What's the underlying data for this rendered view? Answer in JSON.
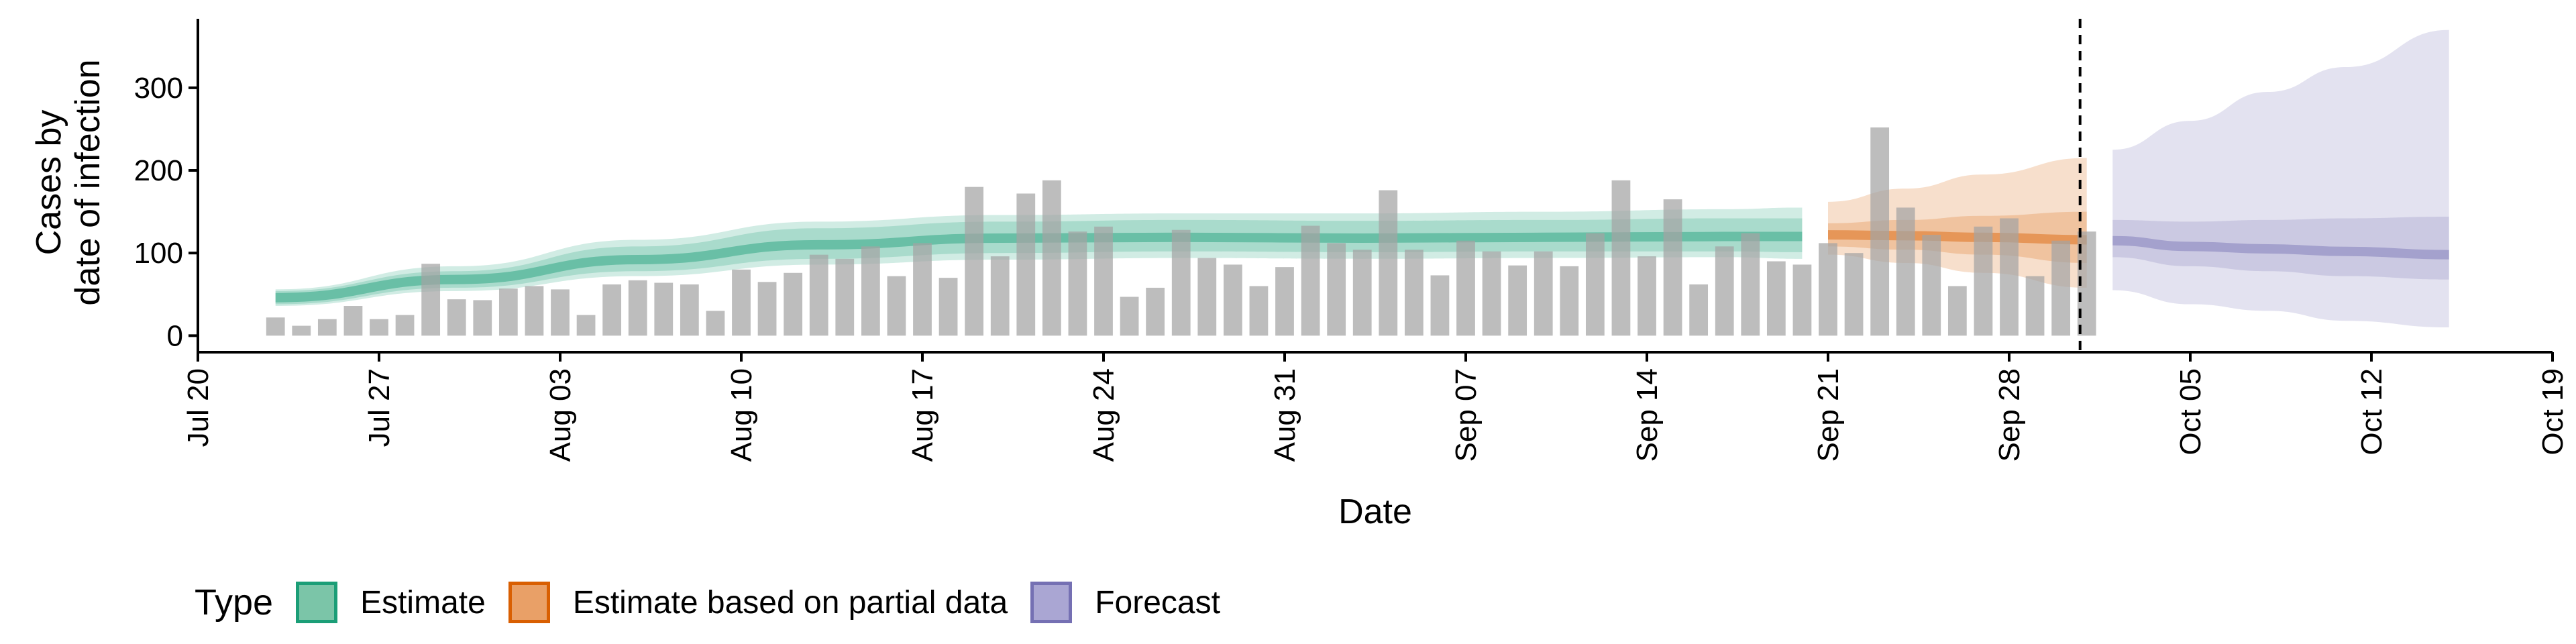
{
  "chart_data": {
    "type": "bar",
    "xlabel": "Date",
    "ylabel": [
      "Cases by",
      "date of infection"
    ],
    "y_ticks": [
      0,
      100,
      200,
      300
    ],
    "ylim": [
      -20,
      390
    ],
    "x_ticks": [
      "Jul 20",
      "Jul 27",
      "Aug 03",
      "Aug 10",
      "Aug 17",
      "Aug 24",
      "Aug 31",
      "Sep 07",
      "Sep 14",
      "Sep 21",
      "Sep 28",
      "Oct 05",
      "Oct 12",
      "Oct 19"
    ],
    "x_range_days_from_jul20": [
      0,
      91
    ],
    "forecast_date": "Oct 01",
    "bars_start": "Jul 23",
    "bars": [
      22,
      12,
      20,
      36,
      20,
      25,
      87,
      44,
      43,
      57,
      60,
      56,
      25,
      62,
      67,
      64,
      62,
      30,
      80,
      65,
      76,
      98,
      93,
      108,
      72,
      112,
      70,
      180,
      96,
      172,
      188,
      126,
      132,
      47,
      58,
      128,
      94,
      86,
      60,
      83,
      133,
      112,
      104,
      176,
      104,
      73,
      115,
      102,
      85,
      102,
      84,
      124,
      188,
      96,
      165,
      62,
      108,
      124,
      90,
      86,
      112,
      100,
      252,
      155,
      122,
      60,
      132,
      142,
      72,
      115,
      126
    ],
    "series": [
      {
        "name": "Estimate",
        "color": "#1b9e77",
        "dates": [
          "Jul 23",
          "Jul 30",
          "Aug 06",
          "Aug 13",
          "Aug 20",
          "Aug 27",
          "Sep 03",
          "Sep 10",
          "Sep 17",
          "Sep 20"
        ],
        "median": [
          46,
          68,
          92,
          110,
          118,
          119,
          118,
          119,
          120,
          120
        ],
        "lower": [
          38,
          58,
          78,
          93,
          100,
          102,
          101,
          102,
          102,
          101
        ],
        "upper": [
          54,
          78,
          108,
          130,
          138,
          140,
          139,
          140,
          142,
          142
        ],
        "lower_90": [
          36,
          54,
          72,
          86,
          92,
          94,
          93,
          94,
          95,
          93
        ],
        "upper_90": [
          56,
          84,
          116,
          138,
          146,
          148,
          148,
          150,
          153,
          155
        ]
      },
      {
        "name": "Estimate based on partial data",
        "color": "#d95f02",
        "dates": [
          "Sep 21",
          "Sep 24",
          "Sep 27",
          "Oct 01"
        ],
        "median": [
          122,
          121,
          119,
          116
        ],
        "lower": [
          108,
          104,
          98,
          88
        ],
        "upper": [
          136,
          140,
          145,
          150
        ],
        "lower_90": [
          98,
          88,
          76,
          58
        ],
        "upper_90": [
          162,
          178,
          195,
          215
        ]
      },
      {
        "name": "Forecast",
        "color": "#7570b3",
        "dates": [
          "Oct 02",
          "Oct 05",
          "Oct 08",
          "Oct 11",
          "Oct 15"
        ],
        "median": [
          115,
          108,
          105,
          102,
          98
        ],
        "lower": [
          95,
          84,
          78,
          72,
          68
        ],
        "upper": [
          140,
          138,
          140,
          142,
          144
        ],
        "lower_90": [
          55,
          38,
          30,
          18,
          10
        ],
        "upper_90": [
          225,
          260,
          295,
          325,
          370
        ]
      }
    ]
  },
  "legend": {
    "title": "Type",
    "items": [
      {
        "label": "Estimate",
        "fill": "#7bc5a8",
        "border": "#1b9e77"
      },
      {
        "label": "Estimate based on partial data",
        "fill": "#e9a067",
        "border": "#d95f02"
      },
      {
        "label": "Forecast",
        "fill": "#aaa6d3",
        "border": "#7570b3"
      }
    ]
  }
}
